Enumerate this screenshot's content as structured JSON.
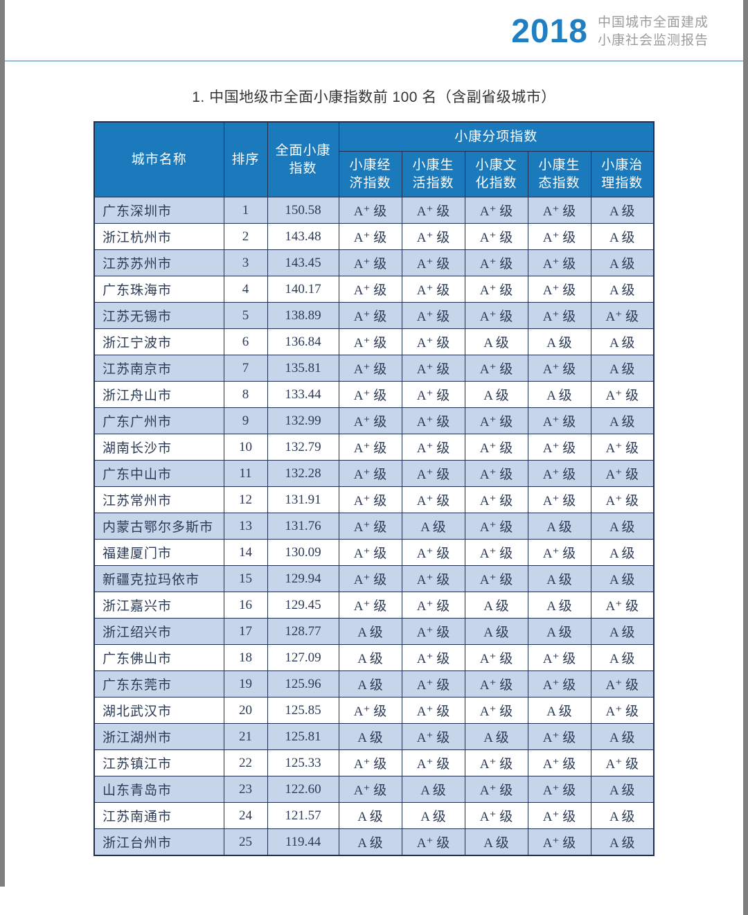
{
  "brand": {
    "year": "2018",
    "line1": "中国城市全面建成",
    "line2": "小康社会监测报告"
  },
  "title": "1. 中国地级市全面小康指数前 100 名（含副省级城市）",
  "colors": {
    "header_bg": "#1a7abc",
    "alt_row_bg": "#c6d5ea",
    "table_border": "#1d2f4e",
    "brand_blue": "#1f7fc0",
    "brand_gray": "#9c9c9c",
    "divider_blue": "#8fbdd4",
    "page_edge_gray": "#7f7f7f",
    "body_text": "#2b3a55"
  },
  "table": {
    "headers": {
      "city": "城市名称",
      "rank": "排序",
      "overall": "全面小康\n指数",
      "group": "小康分项指数",
      "sub": [
        "小康经\n济指数",
        "小康生\n活指数",
        "小康文\n化指数",
        "小康生\n态指数",
        "小康治\n理指数"
      ]
    },
    "rows": [
      {
        "city": "广东深圳市",
        "rank": "1",
        "index": "150.58",
        "grades": [
          "A⁺ 级",
          "A⁺ 级",
          "A⁺ 级",
          "A⁺ 级",
          "A 级"
        ]
      },
      {
        "city": "浙江杭州市",
        "rank": "2",
        "index": "143.48",
        "grades": [
          "A⁺ 级",
          "A⁺ 级",
          "A⁺ 级",
          "A⁺ 级",
          "A 级"
        ]
      },
      {
        "city": "江苏苏州市",
        "rank": "3",
        "index": "143.45",
        "grades": [
          "A⁺ 级",
          "A⁺ 级",
          "A⁺ 级",
          "A⁺ 级",
          "A 级"
        ]
      },
      {
        "city": "广东珠海市",
        "rank": "4",
        "index": "140.17",
        "grades": [
          "A⁺ 级",
          "A⁺ 级",
          "A⁺ 级",
          "A⁺ 级",
          "A 级"
        ]
      },
      {
        "city": "江苏无锡市",
        "rank": "5",
        "index": "138.89",
        "grades": [
          "A⁺ 级",
          "A⁺ 级",
          "A⁺ 级",
          "A⁺ 级",
          "A⁺ 级"
        ]
      },
      {
        "city": "浙江宁波市",
        "rank": "6",
        "index": "136.84",
        "grades": [
          "A⁺ 级",
          "A⁺ 级",
          "A 级",
          "A 级",
          "A 级"
        ]
      },
      {
        "city": "江苏南京市",
        "rank": "7",
        "index": "135.81",
        "grades": [
          "A⁺ 级",
          "A⁺ 级",
          "A⁺ 级",
          "A⁺ 级",
          "A 级"
        ]
      },
      {
        "city": "浙江舟山市",
        "rank": "8",
        "index": "133.44",
        "grades": [
          "A⁺ 级",
          "A⁺ 级",
          "A 级",
          "A 级",
          "A⁺ 级"
        ]
      },
      {
        "city": "广东广州市",
        "rank": "9",
        "index": "132.99",
        "grades": [
          "A⁺ 级",
          "A⁺ 级",
          "A⁺ 级",
          "A⁺ 级",
          "A 级"
        ]
      },
      {
        "city": "湖南长沙市",
        "rank": "10",
        "index": "132.79",
        "grades": [
          "A⁺ 级",
          "A⁺ 级",
          "A⁺ 级",
          "A⁺ 级",
          "A⁺ 级"
        ]
      },
      {
        "city": "广东中山市",
        "rank": "11",
        "index": "132.28",
        "grades": [
          "A⁺ 级",
          "A⁺ 级",
          "A⁺ 级",
          "A⁺ 级",
          "A⁺ 级"
        ]
      },
      {
        "city": "江苏常州市",
        "rank": "12",
        "index": "131.91",
        "grades": [
          "A⁺ 级",
          "A⁺ 级",
          "A⁺ 级",
          "A⁺ 级",
          "A⁺ 级"
        ]
      },
      {
        "city": "内蒙古鄂尔多斯市",
        "rank": "13",
        "index": "131.76",
        "grades": [
          "A⁺ 级",
          "A 级",
          "A⁺ 级",
          "A 级",
          "A 级"
        ]
      },
      {
        "city": "福建厦门市",
        "rank": "14",
        "index": "130.09",
        "grades": [
          "A⁺ 级",
          "A⁺ 级",
          "A⁺ 级",
          "A⁺ 级",
          "A 级"
        ]
      },
      {
        "city": "新疆克拉玛依市",
        "rank": "15",
        "index": "129.94",
        "grades": [
          "A⁺ 级",
          "A⁺ 级",
          "A⁺ 级",
          "A 级",
          "A 级"
        ]
      },
      {
        "city": "浙江嘉兴市",
        "rank": "16",
        "index": "129.45",
        "grades": [
          "A⁺ 级",
          "A⁺ 级",
          "A 级",
          "A 级",
          "A⁺ 级"
        ]
      },
      {
        "city": "浙江绍兴市",
        "rank": "17",
        "index": "128.77",
        "grades": [
          "A 级",
          "A⁺ 级",
          "A 级",
          "A 级",
          "A 级"
        ]
      },
      {
        "city": "广东佛山市",
        "rank": "18",
        "index": "127.09",
        "grades": [
          "A 级",
          "A⁺ 级",
          "A⁺ 级",
          "A⁺ 级",
          "A 级"
        ]
      },
      {
        "city": "广东东莞市",
        "rank": "19",
        "index": "125.96",
        "grades": [
          "A 级",
          "A⁺ 级",
          "A⁺ 级",
          "A⁺ 级",
          "A⁺ 级"
        ]
      },
      {
        "city": "湖北武汉市",
        "rank": "20",
        "index": "125.85",
        "grades": [
          "A⁺ 级",
          "A⁺ 级",
          "A⁺ 级",
          "A 级",
          "A⁺ 级"
        ]
      },
      {
        "city": "浙江湖州市",
        "rank": "21",
        "index": "125.81",
        "grades": [
          "A 级",
          "A⁺ 级",
          "A 级",
          "A⁺ 级",
          "A 级"
        ]
      },
      {
        "city": "江苏镇江市",
        "rank": "22",
        "index": "125.33",
        "grades": [
          "A⁺ 级",
          "A⁺ 级",
          "A⁺ 级",
          "A⁺ 级",
          "A⁺ 级"
        ]
      },
      {
        "city": "山东青岛市",
        "rank": "23",
        "index": "122.60",
        "grades": [
          "A⁺ 级",
          "A 级",
          "A⁺ 级",
          "A⁺ 级",
          "A 级"
        ]
      },
      {
        "city": "江苏南通市",
        "rank": "24",
        "index": "121.57",
        "grades": [
          "A 级",
          "A 级",
          "A⁺ 级",
          "A⁺ 级",
          "A 级"
        ]
      },
      {
        "city": "浙江台州市",
        "rank": "25",
        "index": "119.44",
        "grades": [
          "A 级",
          "A⁺ 级",
          "A 级",
          "A⁺ 级",
          "A 级"
        ]
      }
    ]
  }
}
